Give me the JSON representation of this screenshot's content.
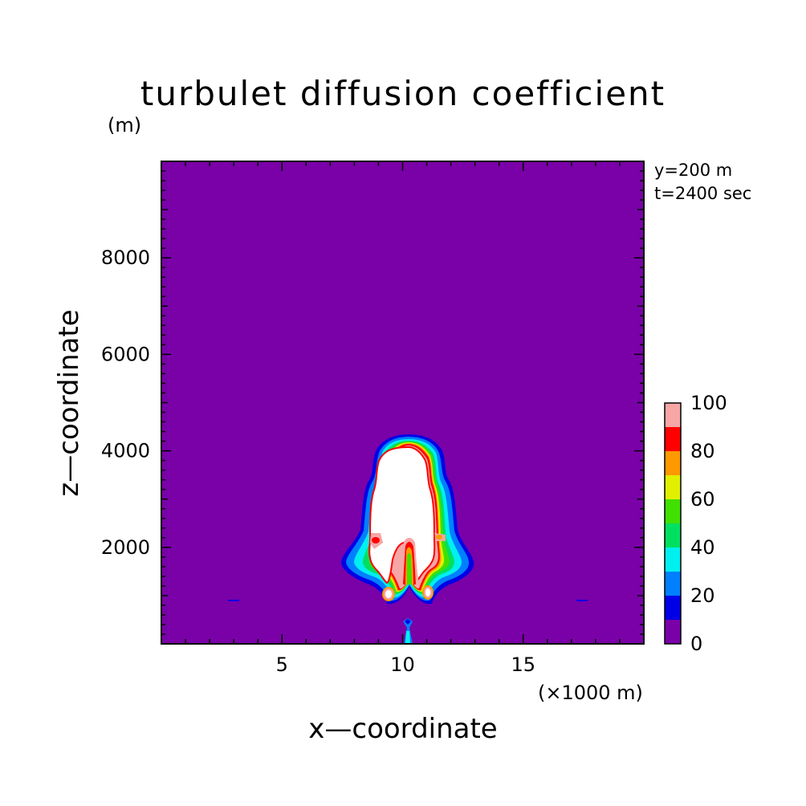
{
  "chart_data": {
    "type": "heatmap",
    "title": "turbulet diffusion coefficient",
    "xlabel": "x—coordinate",
    "ylabel": "z—coordinate",
    "x_unit": "(×1000 m)",
    "y_unit": "(m)",
    "annotations": [
      "y=200 m",
      "t=2400 sec"
    ],
    "xlim": [
      0,
      20
    ],
    "ylim": [
      0,
      10000
    ],
    "x_ticks": [
      5,
      10,
      15
    ],
    "y_ticks": [
      2000,
      4000,
      6000,
      8000
    ],
    "colorbar": {
      "levels": [
        0,
        10,
        20,
        30,
        40,
        50,
        60,
        70,
        80,
        90,
        100
      ],
      "tick_labels": [
        "0",
        "20",
        "40",
        "60",
        "80",
        "100"
      ],
      "colors": [
        "#7a00a8",
        "#0000e6",
        "#0080ff",
        "#00f0f0",
        "#00e060",
        "#40e000",
        "#e0f000",
        "#ff9900",
        "#ff0000",
        "#f7a6a6"
      ]
    },
    "plume": {
      "center_x": 10.2,
      "top_z": 4200,
      "bottom_z": 950,
      "width_at_base_km": [
        7.7,
        12.7
      ],
      "max_value": ">100"
    }
  }
}
